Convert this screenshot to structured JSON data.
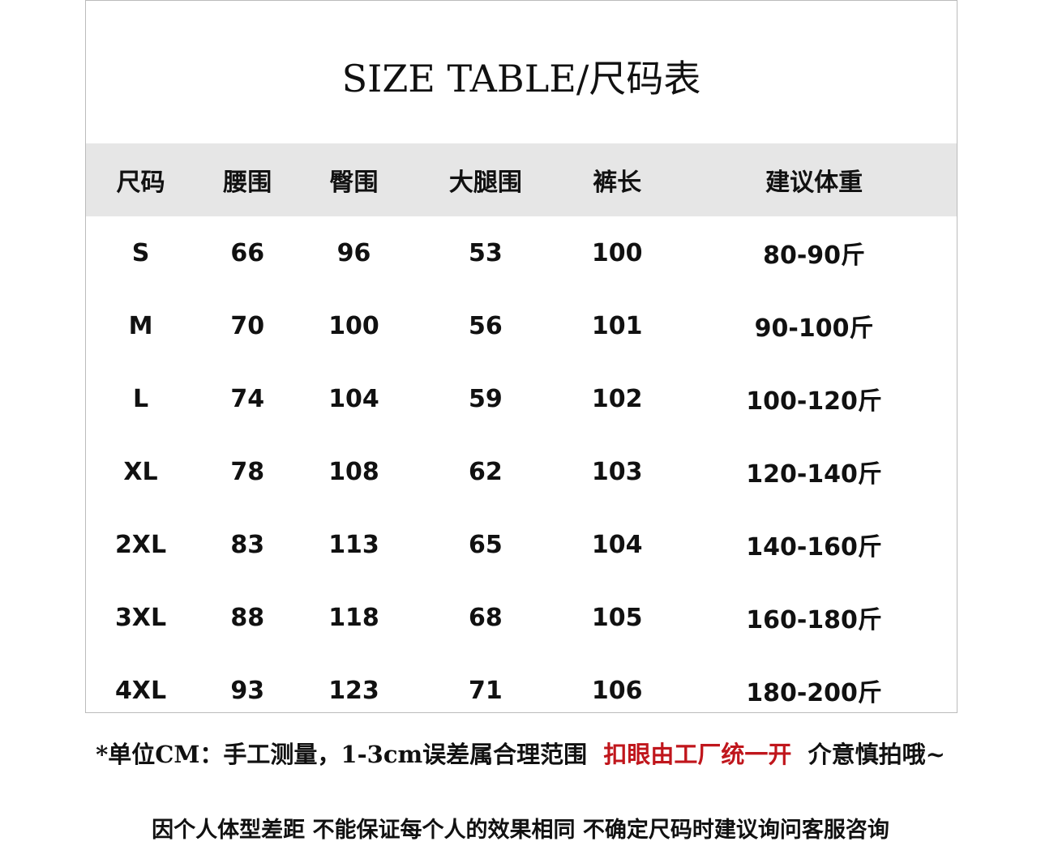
{
  "title": "SIZE TABLE/尺码表",
  "table": {
    "header": [
      "尺码",
      "腰围",
      "臀围",
      "大腿围",
      "裤长",
      "建议体重"
    ],
    "rows": [
      [
        "S",
        "66",
        "96",
        "53",
        "100",
        "80-90斤"
      ],
      [
        "M",
        "70",
        "100",
        "56",
        "101",
        "90-100斤"
      ],
      [
        "L",
        "74",
        "104",
        "59",
        "102",
        "100-120斤"
      ],
      [
        "XL",
        "78",
        "108",
        "62",
        "103",
        "120-140斤"
      ],
      [
        "2XL",
        "83",
        "113",
        "65",
        "104",
        "140-160斤"
      ],
      [
        "3XL",
        "88",
        "118",
        "68",
        "105",
        "160-180斤"
      ],
      [
        "4XL",
        "93",
        "123",
        "71",
        "106",
        "180-200斤"
      ]
    ]
  },
  "notes": {
    "line1": [
      "*单位CM：手工测量，1-3cm误差属合理范围",
      "扣眼由工厂统一开",
      "介意慎拍哦~"
    ],
    "line2": "因个人体型差距 不能保证每个人的效果相同 不确定尺码时建议询问客服咨询"
  }
}
